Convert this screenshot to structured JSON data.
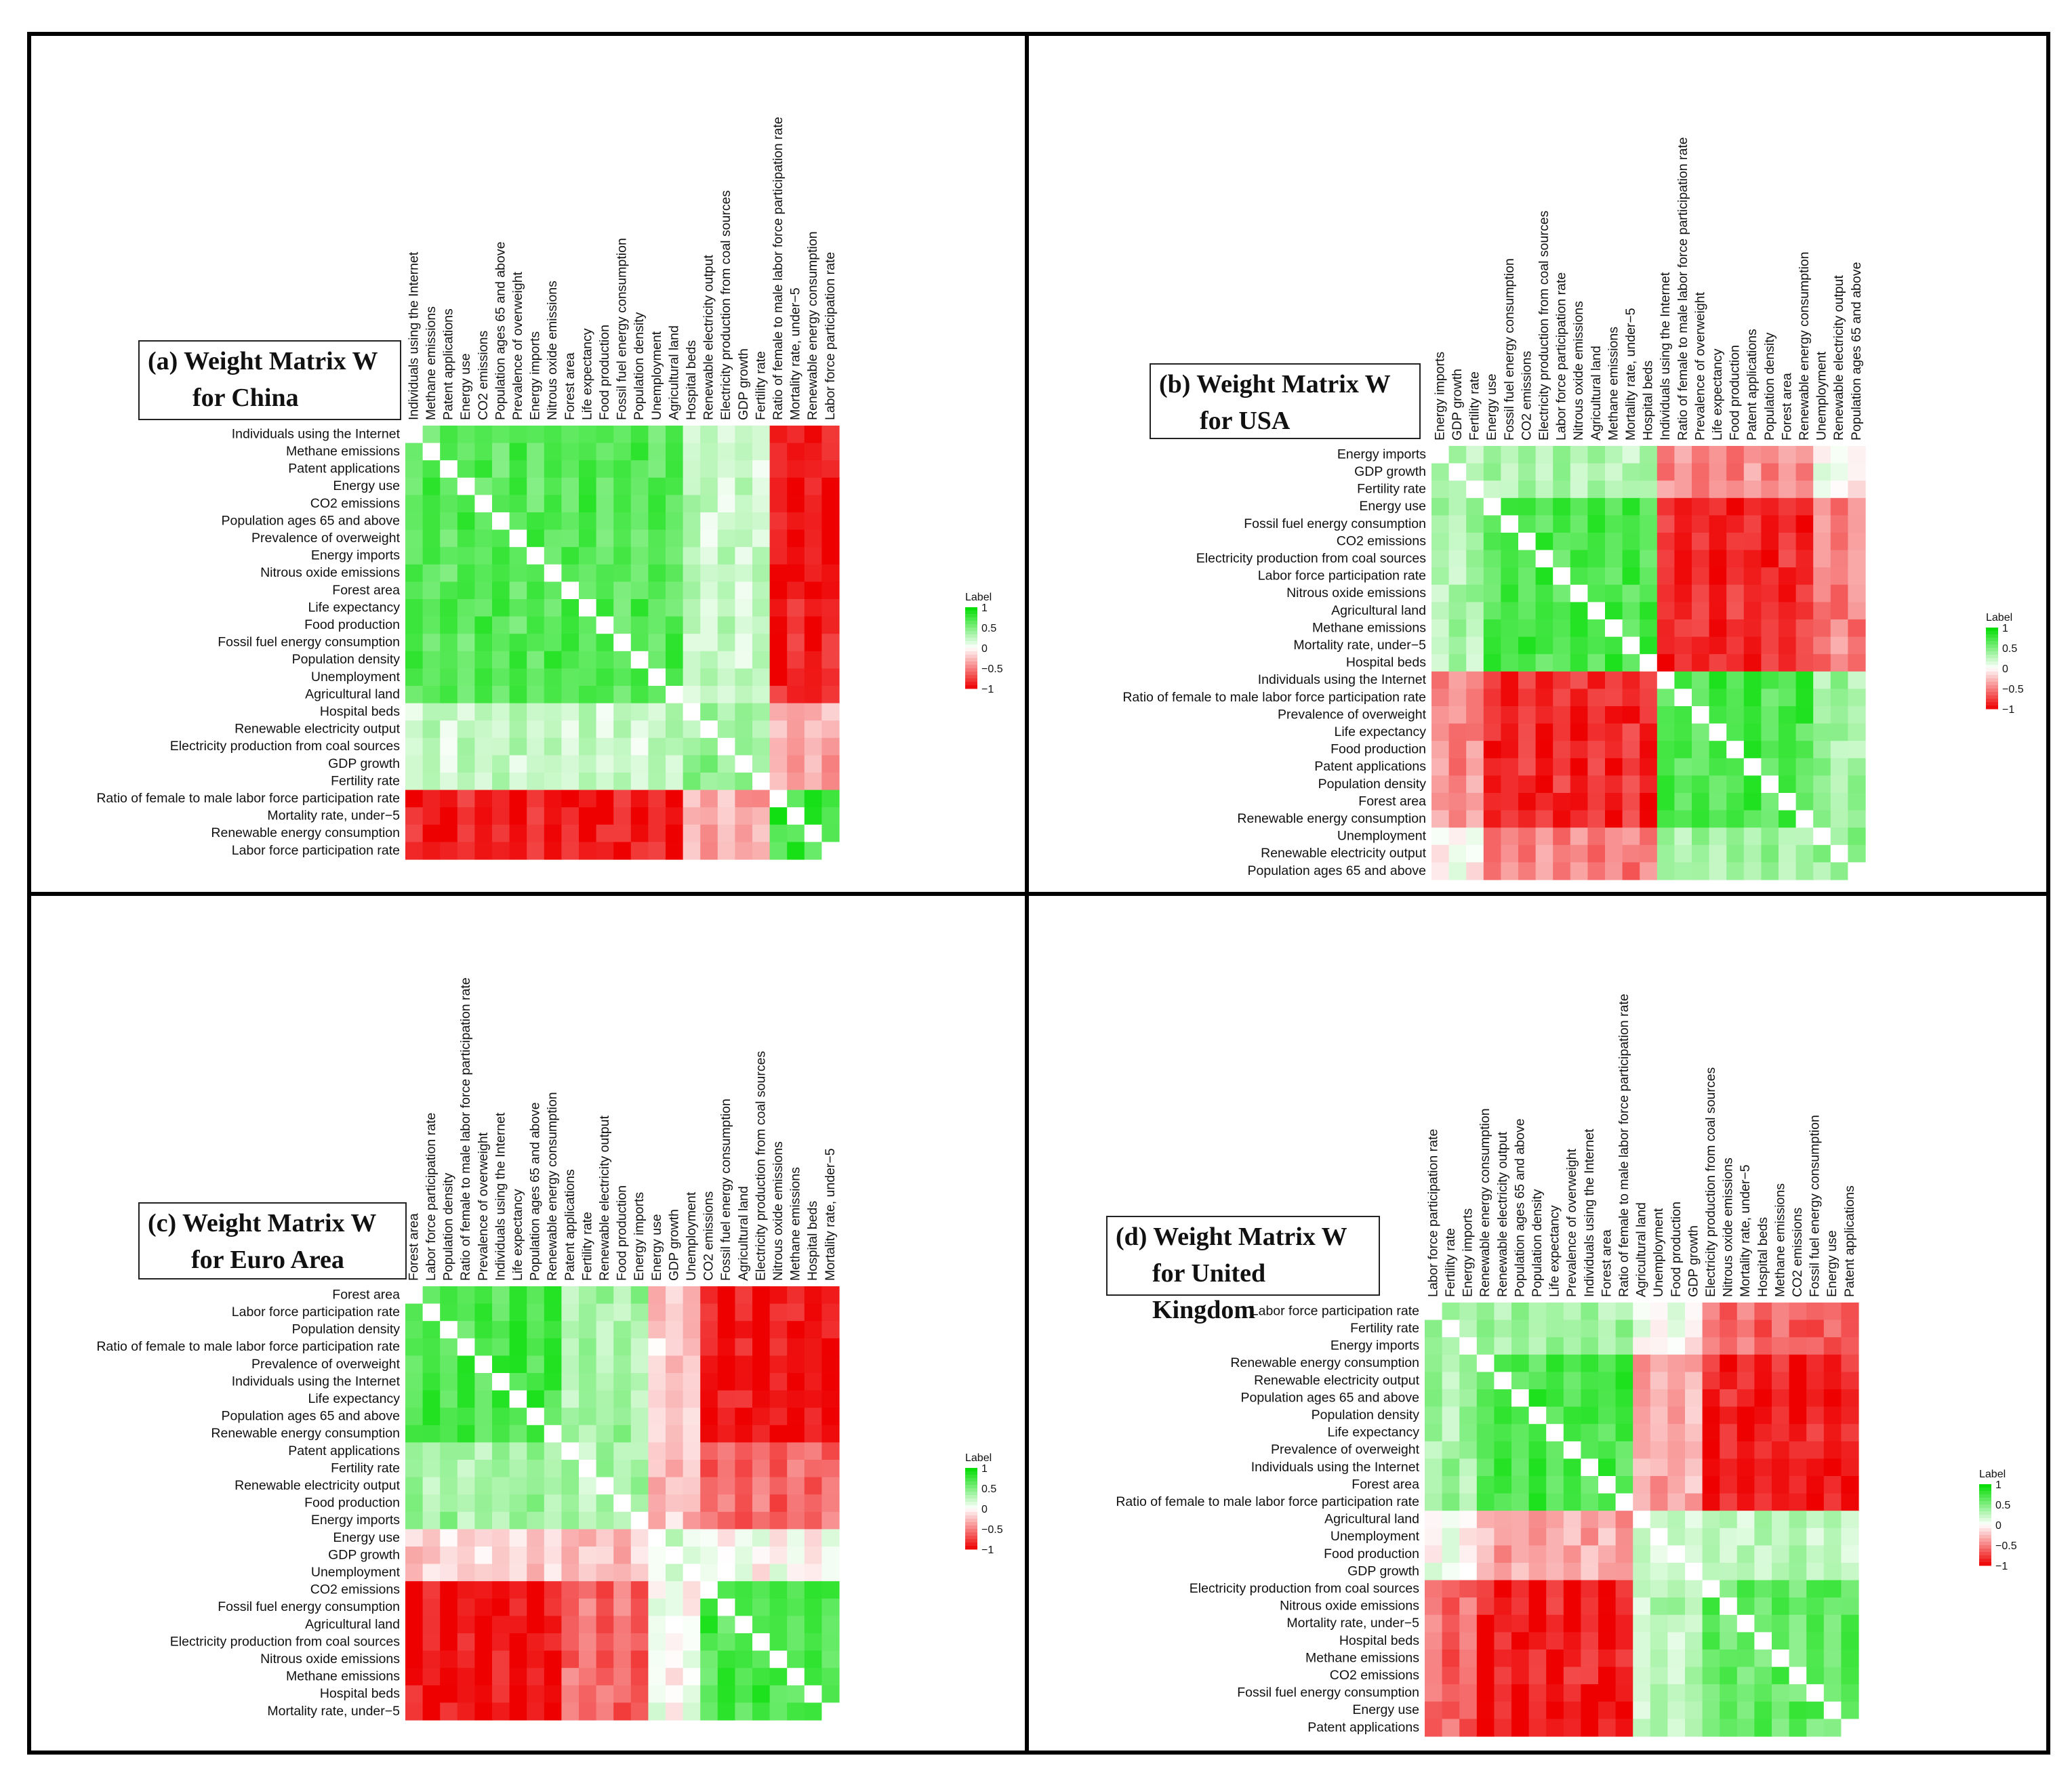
{
  "colors": {
    "high": "#00dd00",
    "mid": "#ffffff",
    "low": "#ee0000"
  },
  "chart_data": [
    {
      "type": "heatmap",
      "title_line1": "(a) Weight Matrix W",
      "title_line2": "for China",
      "legend": {
        "title": "Label",
        "ticks": [
          "1",
          "0.5",
          "0",
          "−0.5",
          "−1"
        ]
      },
      "variables": [
        "Individuals using the Internet",
        "Methane emissions",
        "Patent applications",
        "Energy use",
        "CO2 emissions",
        "Population ages 65 and above",
        "Prevalence of overweight",
        "Energy imports",
        "Nitrous oxide emissions",
        "Forest area",
        "Life expectancy",
        "Food production",
        "Fossil fuel energy consumption",
        "Population density",
        "Unemployment",
        "Agricultural land",
        "Hospital beds",
        "Renewable electricity output",
        "Electricity production from coal sources",
        "GDP growth",
        "Fertility rate",
        "Ratio of female to male labor force participation rate",
        "Mortality rate, under−5",
        "Renewable energy consumption",
        "Labor force participation rate"
      ],
      "block_sizes": [
        16,
        5,
        4
      ],
      "block_values": [
        [
          0.75,
          0.3,
          -0.8
        ],
        [
          0.3,
          0.5,
          -0.25
        ],
        [
          -0.8,
          -0.25,
          0.85
        ]
      ]
    },
    {
      "type": "heatmap",
      "title_line1": "(b) Weight Matrix W",
      "title_line2": "for USA",
      "legend": {
        "title": "Label",
        "ticks": [
          "1",
          "0.5",
          "0",
          "−0.5",
          "−1"
        ]
      },
      "variables": [
        "Energy imports",
        "GDP growth",
        "Fertility rate",
        "Energy use",
        "Fossil fuel energy consumption",
        "CO2 emissions",
        "Electricity production from coal sources",
        "Labor force participation rate",
        "Nitrous oxide emissions",
        "Agricultural land",
        "Methane emissions",
        "Mortality rate, under−5",
        "Hospital beds",
        "Individuals using the Internet",
        "Ratio of female to male labor force participation rate",
        "Prevalence of overweight",
        "Life expectancy",
        "Food production",
        "Patent applications",
        "Population density",
        "Forest area",
        "Renewable energy consumption",
        "Unemployment",
        "Renewable electricity output",
        "Population ages 65 and above"
      ],
      "block_sizes": [
        3,
        10,
        9,
        3
      ],
      "block_values": [
        [
          0.4,
          0.4,
          -0.35,
          0.1
        ],
        [
          0.4,
          0.8,
          -0.75,
          -0.4
        ],
        [
          -0.35,
          -0.75,
          0.8,
          0.45
        ],
        [
          0.1,
          -0.4,
          0.45,
          0.5
        ]
      ]
    },
    {
      "type": "heatmap",
      "title_line1": "(c) Weight Matrix W",
      "title_line2": "for Euro Area",
      "legend": {
        "title": "Label",
        "ticks": [
          "1",
          "0.5",
          "0",
          "−0.5",
          "−1"
        ]
      },
      "variables": [
        "Forest area",
        "Labor force participation rate",
        "Population density",
        "Ratio of female to male labor force participation rate",
        "Prevalence of overweight",
        "Individuals using the Internet",
        "Life expectancy",
        "Population ages 65 and above",
        "Renewable energy consumption",
        "Patent applications",
        "Fertility rate",
        "Renewable electricity output",
        "Food production",
        "Energy imports",
        "Energy use",
        "GDP growth",
        "Unemployment",
        "CO2 emissions",
        "Fossil fuel energy consumption",
        "Agricultural land",
        "Electricity production from coal sources",
        "Nitrous oxide emissions",
        "Methane emissions",
        "Hospital beds",
        "Mortality rate, under−5"
      ],
      "block_sizes": [
        9,
        5,
        3,
        8
      ],
      "block_values": [
        [
          0.8,
          0.45,
          -0.1,
          -0.85
        ],
        [
          0.45,
          0.4,
          -0.15,
          -0.5
        ],
        [
          -0.1,
          -0.15,
          0.3,
          0.1
        ],
        [
          -0.85,
          -0.5,
          0.1,
          0.8
        ]
      ]
    },
    {
      "type": "heatmap",
      "title_line1": "(d) Weight Matrix W",
      "title_line2": "for United Kingdom",
      "legend": {
        "title": "Label",
        "ticks": [
          "1",
          "0.5",
          "0",
          "−0.5",
          "−1"
        ]
      },
      "variables": [
        "Labor force participation rate",
        "Fertility rate",
        "Energy imports",
        "Renewable energy consumption",
        "Renewable electricity output",
        "Population ages 65 and above",
        "Population density",
        "Life expectancy",
        "Prevalence of overweight",
        "Individuals using the Internet",
        "Forest area",
        "Ratio of female to male labor force participation rate",
        "Agricultural land",
        "Unemployment",
        "Food production",
        "GDP growth",
        "Electricity production from coal sources",
        "Nitrous oxide emissions",
        "Mortality rate, under−5",
        "Hospital beds",
        "Methane emissions",
        "CO2 emissions",
        "Fossil fuel energy consumption",
        "Energy use",
        "Patent applications"
      ],
      "block_sizes": [
        3,
        9,
        4,
        9
      ],
      "block_values": [
        [
          0.45,
          0.45,
          0.1,
          -0.5
        ],
        [
          0.45,
          0.8,
          -0.25,
          -0.8
        ],
        [
          0.1,
          -0.25,
          0.3,
          0.35
        ],
        [
          -0.5,
          -0.8,
          0.35,
          0.7
        ]
      ]
    }
  ]
}
